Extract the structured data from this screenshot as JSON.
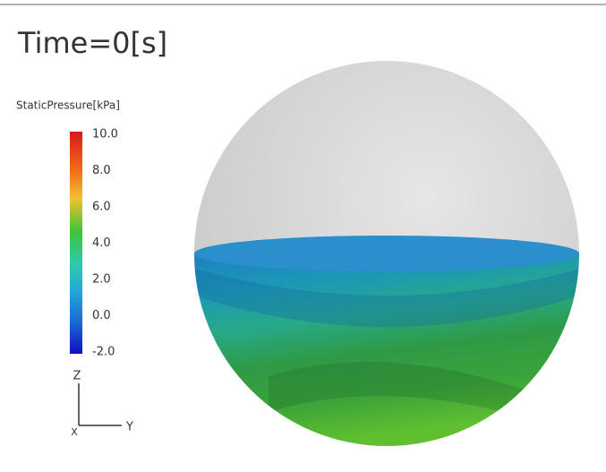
{
  "title": "Time=0[s]",
  "colorbar": {
    "label": "StaticPressure[kPa]",
    "ticks": [
      "10.0",
      "8.0",
      "6.0",
      "4.0",
      "2.0",
      "0.0",
      "-2.0"
    ]
  },
  "axes": {
    "z": "Z",
    "y": "Y",
    "x": "X"
  }
}
